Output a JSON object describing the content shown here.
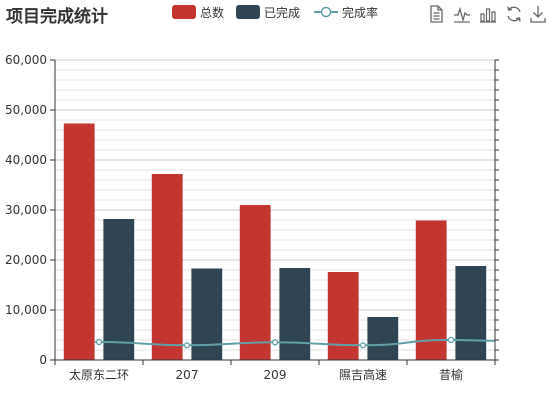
{
  "chart_data": {
    "type": "bar",
    "title": "项目完成统计",
    "categories": [
      "太原东二环",
      "207",
      "209",
      "隰吉高速",
      "昔榆"
    ],
    "series": [
      {
        "name": "总数",
        "type": "bar",
        "color": "#c23531",
        "values": [
          47300,
          37200,
          31000,
          17600,
          27900
        ]
      },
      {
        "name": "已完成",
        "type": "bar",
        "color": "#2f4554",
        "values": [
          28200,
          18300,
          18400,
          8600,
          18800
        ]
      },
      {
        "name": "完成率",
        "type": "line",
        "color": "#61a0a8",
        "values": [
          0.6,
          0.49,
          0.59,
          0.49,
          0.67
        ]
      }
    ],
    "yAxis": {
      "min": 0,
      "max": 60000,
      "ticks": [
        0,
        10000,
        20000,
        30000,
        40000,
        50000,
        60000
      ],
      "tick_labels": [
        "0",
        "10,000",
        "20,000",
        "30,000",
        "40,000",
        "50,000",
        "60,000"
      ]
    },
    "yAxisRight": {
      "min": 0,
      "max": 10,
      "shown_labels": false
    },
    "grid": true,
    "legend_position": "top"
  },
  "toolbox": {
    "icons": [
      "data-view-icon",
      "line-chart-icon",
      "bar-chart-icon",
      "restore-icon",
      "download-icon"
    ]
  }
}
